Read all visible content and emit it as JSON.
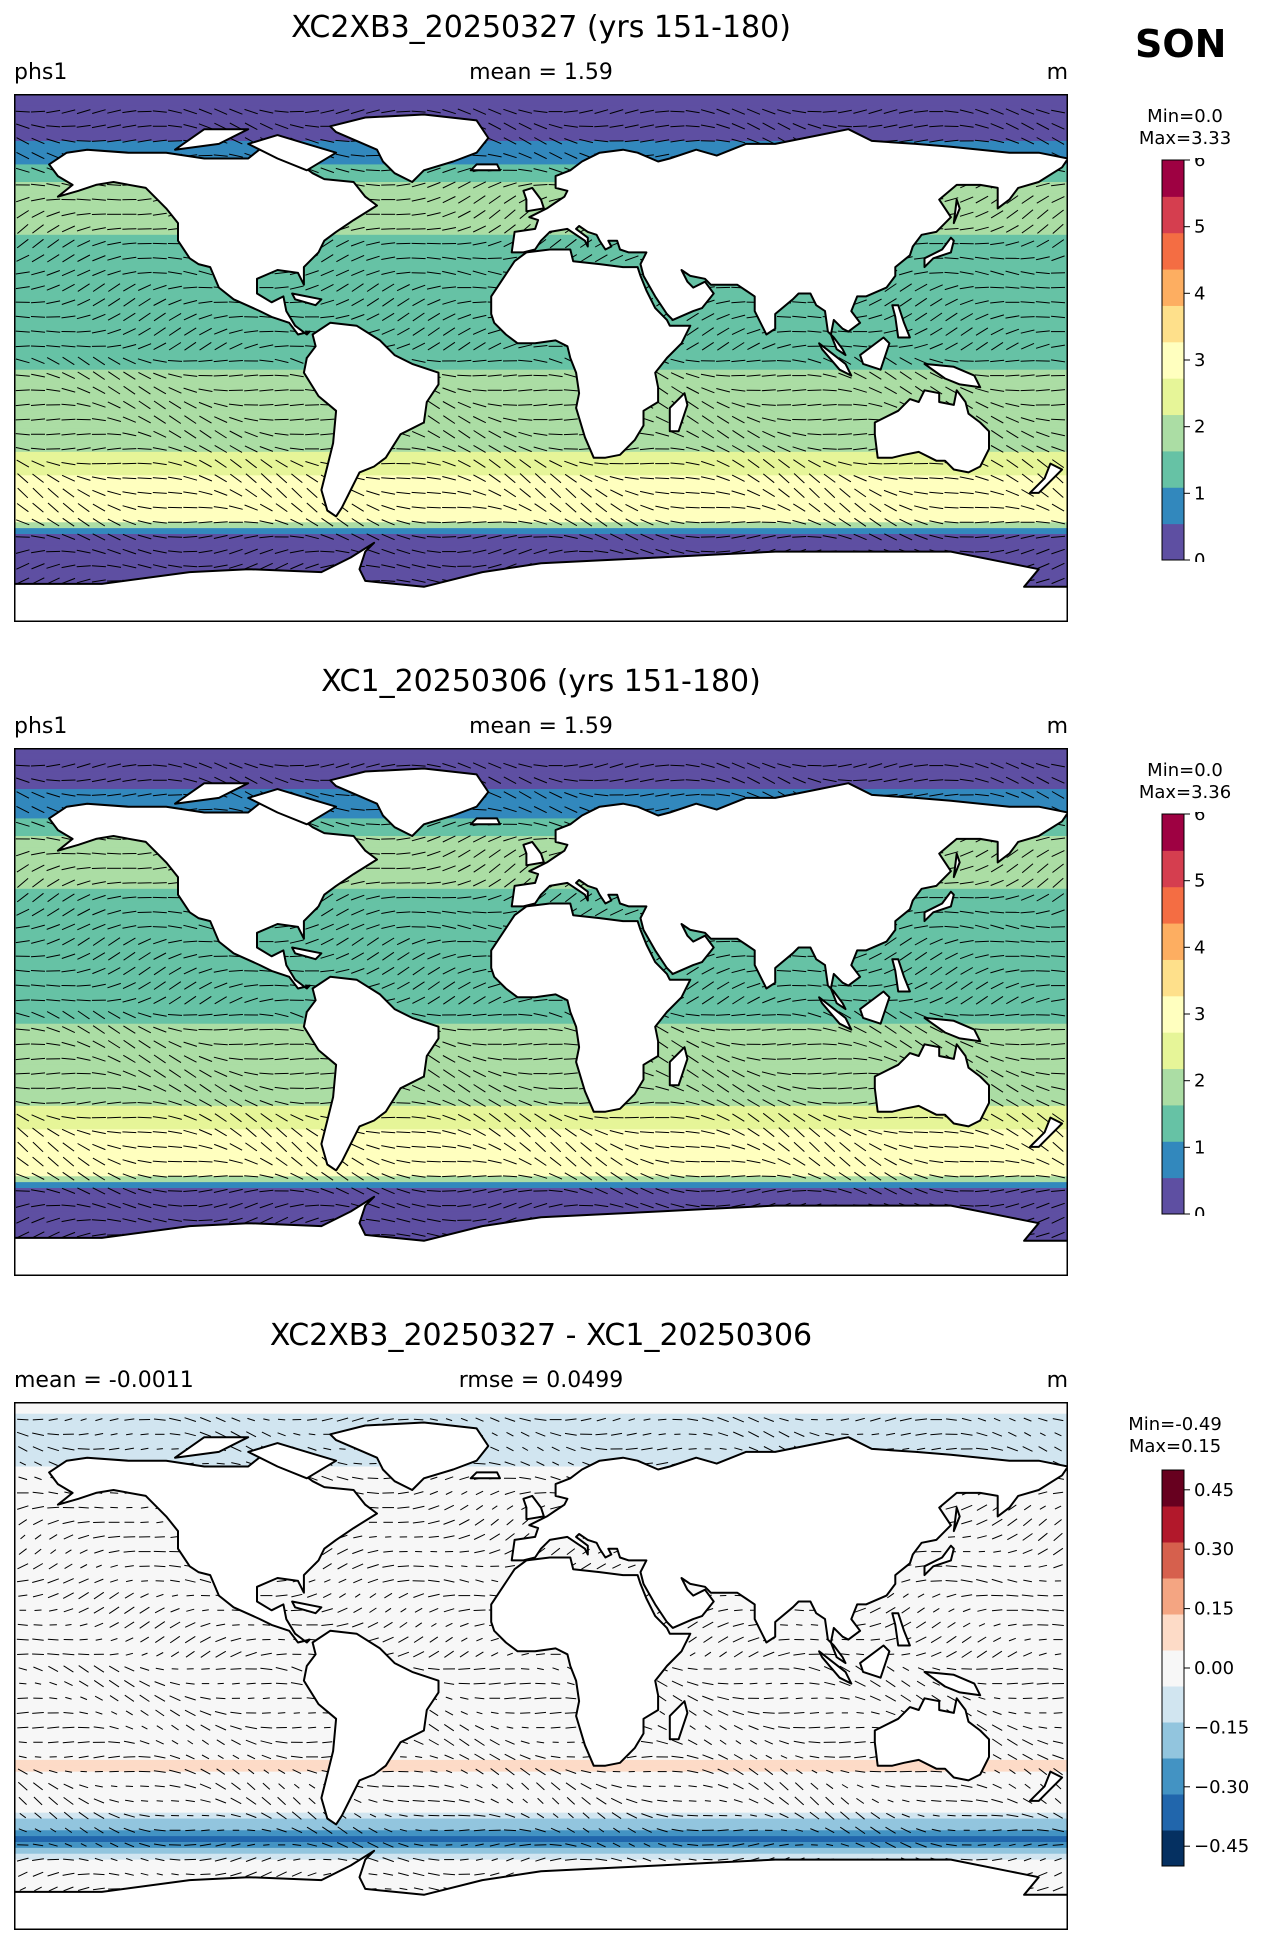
{
  "season": "SON",
  "colormaps": {
    "seq": [
      "#5e4fa2",
      "#3288bd",
      "#66c2a5",
      "#abdda4",
      "#e6f598",
      "#ffffbf",
      "#fee08b",
      "#fdae61",
      "#f46d43",
      "#d53e4f",
      "#9e0142"
    ],
    "div": [
      "#053061",
      "#2166ac",
      "#4393c3",
      "#92c5de",
      "#d1e5f0",
      "#f7f7f7",
      "#fddbc7",
      "#f4a582",
      "#d6604d",
      "#b2182b",
      "#67001f"
    ],
    "land": "#ffffff",
    "coast": "#000000"
  },
  "chart_data": [
    {
      "type": "heatmap",
      "title": "XC2XB3_20250327 (yrs 151-180)",
      "left_label": "phs1",
      "center_label": "mean = 1.59",
      "right_label": "m",
      "colorbar": {
        "min_label": "Min=0.0",
        "max_label": "Max=3.33",
        "range": [
          0,
          6
        ],
        "ticks": [
          "0",
          "1",
          "2",
          "3",
          "4",
          "5",
          "6"
        ]
      },
      "overlay": "vectors",
      "zonal_profile": {
        "lat": [
          90,
          80,
          72,
          66,
          60,
          55,
          50,
          45,
          40,
          30,
          20,
          10,
          0,
          -10,
          -20,
          -30,
          -35,
          -40,
          -45,
          -50,
          -55,
          -60,
          -65,
          -70,
          -80,
          -90
        ],
        "value": [
          0.2,
          0.3,
          0.6,
          1.0,
          1.6,
          1.9,
          1.9,
          1.7,
          1.6,
          1.5,
          1.5,
          1.6,
          1.6,
          1.7,
          1.8,
          2.1,
          2.4,
          2.7,
          2.9,
          3.0,
          2.8,
          0.3,
          0.2,
          0.1,
          0.1,
          0.1
        ]
      }
    },
    {
      "type": "heatmap",
      "title": "XC1_20250306 (yrs 151-180)",
      "left_label": "phs1",
      "center_label": "mean = 1.59",
      "right_label": "m",
      "colorbar": {
        "min_label": "Min=0.0",
        "max_label": "Max=3.36",
        "range": [
          0,
          6
        ],
        "ticks": [
          "0",
          "1",
          "2",
          "3",
          "4",
          "5",
          "6"
        ]
      },
      "overlay": "vectors",
      "zonal_profile": {
        "lat": [
          90,
          80,
          72,
          66,
          60,
          55,
          50,
          45,
          40,
          30,
          20,
          10,
          0,
          -10,
          -20,
          -30,
          -35,
          -40,
          -45,
          -50,
          -55,
          -60,
          -65,
          -70,
          -80,
          -90
        ],
        "value": [
          0.2,
          0.3,
          0.7,
          1.1,
          1.7,
          2.0,
          1.9,
          1.7,
          1.6,
          1.5,
          1.5,
          1.6,
          1.6,
          1.7,
          1.8,
          2.1,
          2.4,
          2.7,
          2.9,
          3.0,
          2.8,
          0.3,
          0.2,
          0.1,
          0.1,
          0.1
        ]
      }
    },
    {
      "type": "heatmap",
      "title": "XC2XB3_20250327 - XC1_20250306",
      "left_label": "mean = -0.0011",
      "center_label": "rmse = 0.0499",
      "right_label": "m",
      "colorbar": {
        "min_label": "Min=-0.49",
        "max_label": "Max=0.15",
        "range": [
          -0.5,
          0.5
        ],
        "ticks": [
          "0.45",
          "0.30",
          "0.15",
          "0.00",
          "−0.15",
          "−0.30",
          "−0.45"
        ]
      },
      "overlay": "vectors",
      "zonal_profile": {
        "lat": [
          90,
          80,
          72,
          66,
          60,
          55,
          50,
          45,
          40,
          30,
          20,
          10,
          0,
          -10,
          -20,
          -30,
          -35,
          -40,
          -45,
          -50,
          -55,
          -60,
          -65,
          -70,
          -80,
          -90
        ],
        "value": [
          -0.02,
          -0.08,
          -0.06,
          -0.04,
          -0.02,
          -0.01,
          0.0,
          -0.01,
          -0.01,
          0.02,
          0.02,
          0.0,
          -0.01,
          0.01,
          0.02,
          0.04,
          0.05,
          0.03,
          0.01,
          -0.05,
          -0.2,
          -0.35,
          -0.05,
          0.01,
          0.0,
          0.0
        ]
      }
    }
  ]
}
